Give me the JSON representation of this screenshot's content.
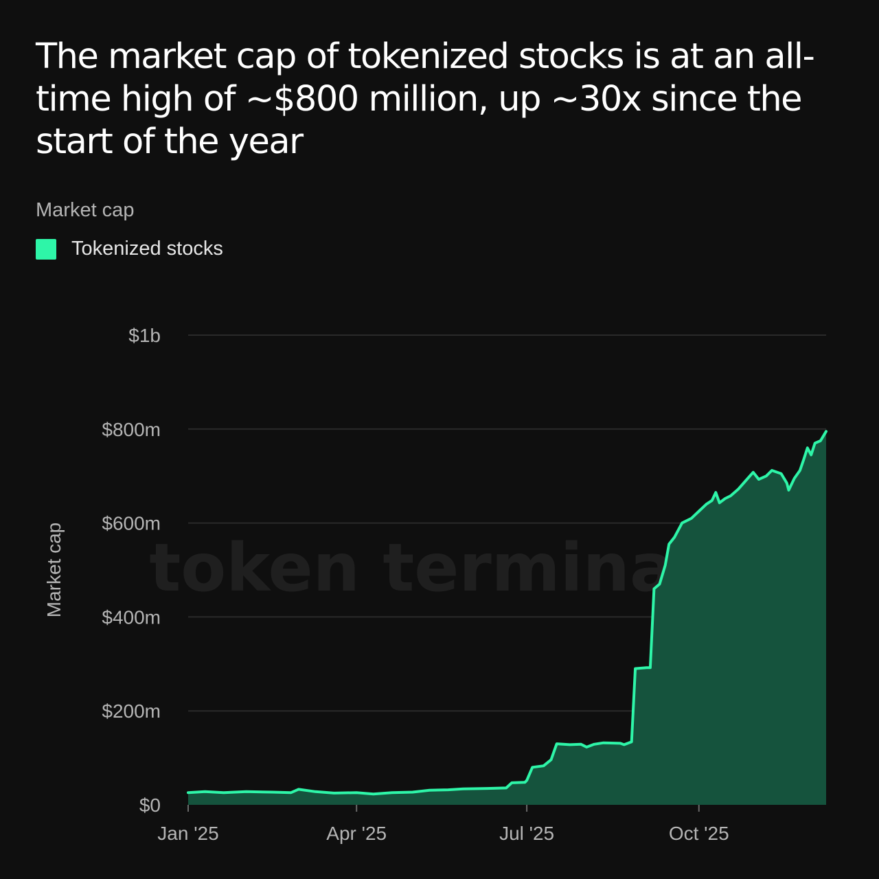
{
  "title": "The market cap of tokenized stocks is at an all-time high of ~$800 million, up ~30x since the start of the year",
  "subtitle": "Market cap",
  "watermark": "token terminal_",
  "colors": {
    "line": "#2ef5a8",
    "fill": "#15533d",
    "grid": "#2a2a2a",
    "background": "#0f0f0f"
  },
  "chart_data": {
    "type": "area",
    "title": "The market cap of tokenized stocks is at an all-time high of ~$800 million, up ~30x since the start of the year",
    "subtitle": "Market cap",
    "ylabel": "Market cap",
    "xlabel": "",
    "ylim": [
      0,
      1000000000
    ],
    "xlim": [
      "2025-01-01",
      "2025-12-08"
    ],
    "y_ticks": [
      {
        "value": 0,
        "label": "$0"
      },
      {
        "value": 200000000,
        "label": "$200m"
      },
      {
        "value": 400000000,
        "label": "$400m"
      },
      {
        "value": 600000000,
        "label": "$600m"
      },
      {
        "value": 800000000,
        "label": "$800m"
      },
      {
        "value": 1000000000,
        "label": "$1b"
      }
    ],
    "x_ticks": [
      {
        "value": "2025-01-01",
        "label": "Jan '25"
      },
      {
        "value": "2025-04-01",
        "label": "Apr '25"
      },
      {
        "value": "2025-07-01",
        "label": "Jul '25"
      },
      {
        "value": "2025-10-01",
        "label": "Oct '25"
      }
    ],
    "grid": true,
    "legend": "top-left",
    "series": [
      {
        "name": "Tokenized stocks",
        "color": "#2ef5a8",
        "points": [
          [
            "2025-01-01",
            26000000
          ],
          [
            "2025-01-10",
            28000000
          ],
          [
            "2025-01-20",
            26000000
          ],
          [
            "2025-02-01",
            28000000
          ],
          [
            "2025-02-15",
            27000000
          ],
          [
            "2025-02-25",
            26000000
          ],
          [
            "2025-03-01",
            33000000
          ],
          [
            "2025-03-10",
            28000000
          ],
          [
            "2025-03-20",
            25000000
          ],
          [
            "2025-04-01",
            26000000
          ],
          [
            "2025-04-10",
            23000000
          ],
          [
            "2025-04-20",
            26000000
          ],
          [
            "2025-05-01",
            27000000
          ],
          [
            "2025-05-10",
            31000000
          ],
          [
            "2025-05-20",
            32000000
          ],
          [
            "2025-05-28",
            34000000
          ],
          [
            "2025-06-10",
            35000000
          ],
          [
            "2025-06-20",
            36000000
          ],
          [
            "2025-06-23",
            47000000
          ],
          [
            "2025-06-30",
            48000000
          ],
          [
            "2025-07-01",
            52000000
          ],
          [
            "2025-07-04",
            80000000
          ],
          [
            "2025-07-10",
            83000000
          ],
          [
            "2025-07-14",
            96000000
          ],
          [
            "2025-07-17",
            130000000
          ],
          [
            "2025-07-24",
            128000000
          ],
          [
            "2025-07-30",
            129000000
          ],
          [
            "2025-08-02",
            123000000
          ],
          [
            "2025-08-06",
            129000000
          ],
          [
            "2025-08-11",
            132000000
          ],
          [
            "2025-08-20",
            131000000
          ],
          [
            "2025-08-22",
            128000000
          ],
          [
            "2025-08-26",
            134000000
          ],
          [
            "2025-08-28",
            290000000
          ],
          [
            "2025-09-03",
            292000000
          ],
          [
            "2025-09-05",
            292000000
          ],
          [
            "2025-09-07",
            460000000
          ],
          [
            "2025-09-10",
            470000000
          ],
          [
            "2025-09-13",
            510000000
          ],
          [
            "2025-09-15",
            555000000
          ],
          [
            "2025-09-18",
            570000000
          ],
          [
            "2025-09-22",
            600000000
          ],
          [
            "2025-09-27",
            610000000
          ],
          [
            "2025-10-01",
            625000000
          ],
          [
            "2025-10-05",
            640000000
          ],
          [
            "2025-10-08",
            648000000
          ],
          [
            "2025-10-10",
            665000000
          ],
          [
            "2025-10-12",
            643000000
          ],
          [
            "2025-10-15",
            652000000
          ],
          [
            "2025-10-18",
            658000000
          ],
          [
            "2025-10-22",
            672000000
          ],
          [
            "2025-10-26",
            690000000
          ],
          [
            "2025-10-30",
            708000000
          ],
          [
            "2025-11-02",
            693000000
          ],
          [
            "2025-11-06",
            700000000
          ],
          [
            "2025-11-09",
            712000000
          ],
          [
            "2025-11-14",
            705000000
          ],
          [
            "2025-11-17",
            685000000
          ],
          [
            "2025-11-18",
            670000000
          ],
          [
            "2025-11-21",
            695000000
          ],
          [
            "2025-11-24",
            712000000
          ],
          [
            "2025-11-26",
            735000000
          ],
          [
            "2025-11-28",
            760000000
          ],
          [
            "2025-11-30",
            745000000
          ],
          [
            "2025-12-02",
            770000000
          ],
          [
            "2025-12-05",
            775000000
          ],
          [
            "2025-12-08",
            795000000
          ]
        ]
      }
    ]
  }
}
